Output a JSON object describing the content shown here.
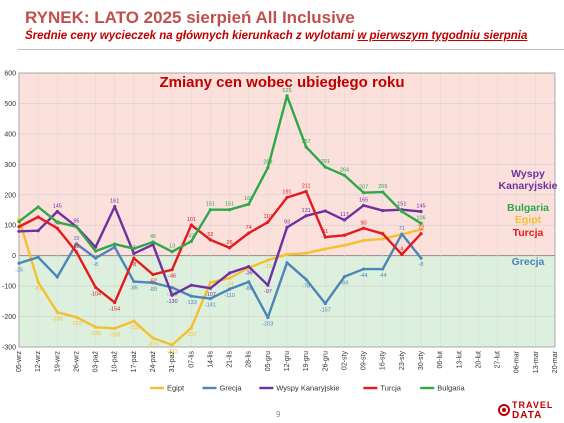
{
  "slide": {
    "title": "RYNEK: LATO 2025 sierpień All Inclusive",
    "subtitle_pre": "Średnie ceny wycieczek na głównych kierunkach z wylotami ",
    "subtitle_underlined": "w pierwszym tygodniu sierpnia",
    "page_number": "9",
    "logo_line1": "TRAVEL",
    "logo_line2": "DATA"
  },
  "colors": {
    "Egipt": "#f5c02e",
    "Grecja": "#4a86b8",
    "Wyspy Kanaryjskie": "#7030a0",
    "Turcja": "#e41a1c",
    "Bulgaria": "#2ea84a",
    "positive_bg": "#fbe0dc",
    "negative_bg": "#ddf0dd"
  },
  "chart_data": {
    "type": "line",
    "title": "Zmiany cen wobec ubiegłego roku",
    "xlabel": "",
    "ylabel": "",
    "ylim": [
      -300,
      600
    ],
    "yticks": [
      -300,
      -200,
      -100,
      0,
      100,
      200,
      300,
      400,
      500,
      600
    ],
    "grid": true,
    "legend": "bottom",
    "categories": [
      "05-wrz",
      "12-wrz",
      "19-wrz",
      "26-wrz",
      "03-paź",
      "10-paź",
      "17-paź",
      "24-paź",
      "31-paź",
      "07-lis",
      "14-lis",
      "21-lis",
      "28-lis",
      "05-gru",
      "12-gru",
      "19-gru",
      "26-gru",
      "02-sty",
      "09-sty",
      "16-sty",
      "23-sty",
      "30-sty",
      "06-lut",
      "13-lut",
      "20-lut",
      "27-lut",
      "06-mar",
      "13-mar",
      "20-mar"
    ],
    "series": [
      {
        "name": "Egipt",
        "values": [
          120,
          -87,
          -186,
          -202,
          -235,
          -239,
          -215,
          -271,
          -293,
          -237,
          -88,
          -74,
          -40,
          -15,
          4,
          8,
          22,
          34,
          50,
          55,
          70,
          86,
          null,
          null,
          null,
          null,
          null,
          null,
          null
        ],
        "labels": [
          "",
          "-87",
          "-186",
          "-202",
          "-235",
          "-239",
          "-215",
          "-271",
          "-293",
          "-237",
          "",
          "-74",
          "",
          "-15",
          "",
          "",
          "",
          "",
          "",
          "55",
          "",
          "86",
          "",
          "",
          "",
          "",
          "",
          "",
          ""
        ]
      },
      {
        "name": "Grecja",
        "values": [
          -25,
          -5,
          -70,
          39,
          -8,
          28,
          -85,
          -89,
          -105,
          -133,
          -141,
          -110,
          -86,
          -203,
          -23,
          -78,
          -157,
          -69,
          -44,
          -44,
          71,
          -8,
          null,
          null,
          null,
          null,
          null,
          null,
          null
        ],
        "labels": [
          "-25",
          "",
          "",
          "39",
          "-8",
          "",
          "-85",
          "-89",
          "-105",
          "-133",
          "-141",
          "-110",
          "-86",
          "-203",
          "",
          "-78",
          "-157",
          "-69",
          "-44",
          "-44",
          "71",
          "-8",
          "",
          "",
          "",
          "",
          "",
          "",
          ""
        ]
      },
      {
        "name": "Wyspy Kanaryjskie",
        "values": [
          80,
          82,
          145,
          95,
          28,
          161,
          7,
          36,
          -130,
          -97,
          -107,
          -57,
          -36,
          -97,
          93,
          131,
          147,
          117,
          165,
          148,
          151,
          145,
          null,
          null,
          null,
          null,
          null,
          null,
          null
        ],
        "labels": [
          "",
          "",
          "145",
          "95",
          "",
          "161",
          "7",
          "",
          "-130",
          "",
          "-107",
          "",
          "-36",
          "-97",
          "93",
          "131",
          "",
          "117",
          "165",
          "",
          "151",
          "145",
          "",
          "",
          "",
          "",
          "",
          "",
          ""
        ]
      },
      {
        "name": "Turcja",
        "values": [
          95,
          127,
          90,
          12,
          -104,
          -154,
          -8,
          -62,
          -46,
          101,
          52,
          26,
          74,
          110,
          191,
          211,
          61,
          67,
          90,
          72,
          4,
          72,
          null,
          null,
          null,
          null,
          null,
          null,
          null
        ],
        "labels": [
          "",
          "",
          "90",
          "12",
          "-104",
          "-154",
          "-8",
          "-62",
          "-46",
          "101",
          "52",
          "26",
          "74",
          "110",
          "191",
          "211",
          "61",
          "",
          "90",
          "",
          "4",
          "72",
          "",
          "",
          "",
          "",
          "",
          "",
          ""
        ]
      },
      {
        "name": "Bulgaria",
        "values": [
          112,
          160,
          110,
          95,
          15,
          38,
          23,
          45,
          13,
          47,
          151,
          151,
          169,
          289,
          525,
          357,
          291,
          264,
          207,
          209,
          145,
          106,
          null,
          null,
          null,
          null,
          null,
          null,
          null
        ],
        "labels": [
          "",
          "",
          "",
          "",
          "",
          "",
          "",
          "45",
          "13",
          "47",
          "151",
          "151",
          "169",
          "289",
          "525",
          "357",
          "291",
          "264",
          "207",
          "209",
          "",
          "106",
          "",
          "",
          "",
          "",
          "",
          "",
          ""
        ]
      }
    ],
    "annotations": [
      {
        "text": "Wyspy\nKanaryjskie",
        "series": "Wyspy Kanaryjskie"
      },
      {
        "text": "Bulgaria",
        "series": "Bulgaria"
      },
      {
        "text": "Egipt",
        "series": "Egipt"
      },
      {
        "text": "Turcja",
        "series": "Turcja"
      },
      {
        "text": "Grecja",
        "series": "Grecja"
      }
    ]
  }
}
